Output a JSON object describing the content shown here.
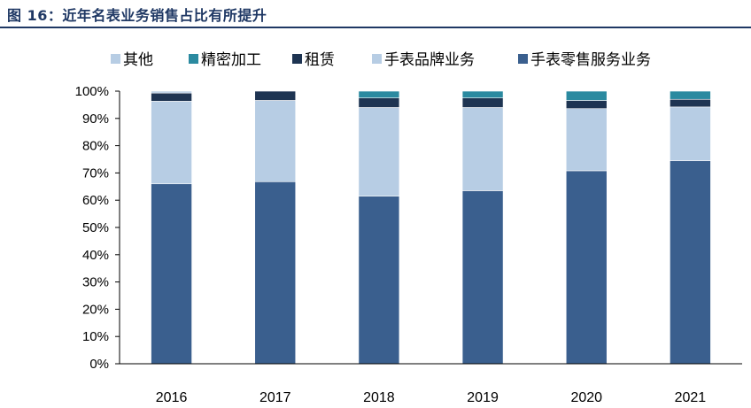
{
  "figure": {
    "title": "图 16：近年名表业务销售占比有所提升"
  },
  "chart_data": {
    "type": "bar",
    "stacked": true,
    "title": "",
    "xlabel": "",
    "ylabel": "",
    "ylim": [
      0,
      100
    ],
    "yticks": [
      "0%",
      "10%",
      "20%",
      "30%",
      "40%",
      "50%",
      "60%",
      "70%",
      "80%",
      "90%",
      "100%"
    ],
    "legend_position": "top",
    "categories": [
      "2016",
      "2017",
      "2018",
      "2019",
      "2020",
      "2021"
    ],
    "series": [
      {
        "name": "手表零售服务业务",
        "color": "#3a5f8e",
        "values": [
          66,
          66.8,
          61.5,
          63.5,
          70.8,
          74.5
        ]
      },
      {
        "name": "手表品牌业务",
        "color": "#b7cde4",
        "values": [
          30.3,
          29.8,
          32.5,
          30.5,
          22.8,
          19.7
        ]
      },
      {
        "name": "租赁",
        "color": "#1e3452",
        "values": [
          3.0,
          3.4,
          3.5,
          3.5,
          3.0,
          2.8
        ]
      },
      {
        "name": "精密加工",
        "color": "#2b8aa0",
        "values": [
          0,
          0,
          2.5,
          2.5,
          3.4,
          3.0
        ]
      },
      {
        "name": "其他",
        "color": "#b7cde4",
        "values": [
          0.7,
          0,
          0,
          0,
          0,
          0
        ]
      }
    ],
    "legend_order": [
      "其他",
      "精密加工",
      "租赁",
      "手表品牌业务",
      "手表零售服务业务"
    ]
  }
}
